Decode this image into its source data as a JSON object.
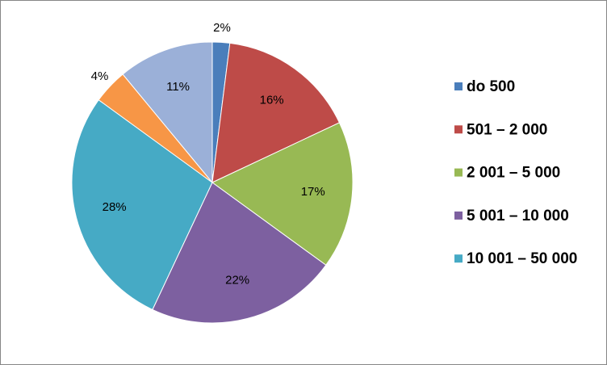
{
  "chart_data": {
    "type": "pie",
    "categories": [
      "do 500",
      "501 – 2 000",
      "2 001 – 5 000",
      "5 001 – 10 000",
      "10 001 – 50 000",
      null,
      null
    ],
    "values": [
      2,
      16,
      17,
      22,
      28,
      4,
      11
    ],
    "value_labels": [
      "2%",
      "16%",
      "17%",
      "22%",
      "28%",
      "4%",
      "11%"
    ],
    "colors": [
      "#4a7ebb",
      "#be4b48",
      "#98b954",
      "#7d60a0",
      "#46aac5",
      "#f79646",
      "#9bb0d8"
    ],
    "legend": "right"
  }
}
